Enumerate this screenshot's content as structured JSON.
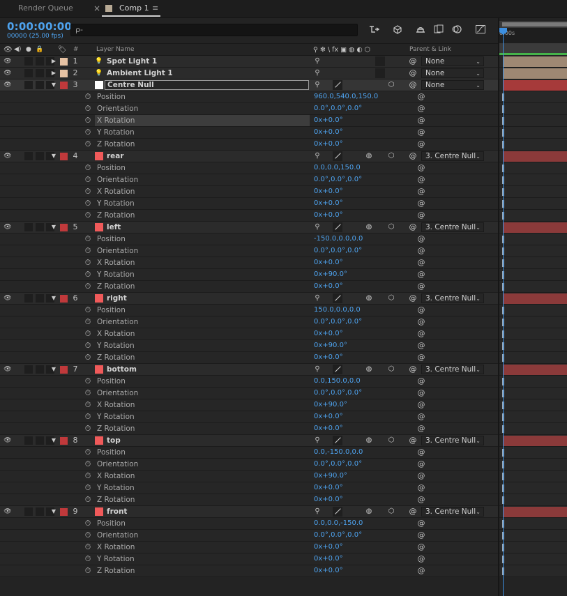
{
  "tabs": {
    "render_queue": "Render Queue",
    "close": "×",
    "comp": "Comp 1",
    "menu": "≡"
  },
  "header": {
    "timecode": "0:00:00:00",
    "fps": "00000 (25.00 fps)",
    "search_icon": "ρ-"
  },
  "columns": {
    "label_num": "#",
    "layer_name": "Layer Name",
    "switches": "⚲ ✻ \\ fx ▣ ◍ ◐ ⬡",
    "parent": "Parent & Link"
  },
  "timeline": {
    "ruler_label": "0:00s"
  },
  "colors": {
    "accent_blue": "#4ea3ef",
    "light_label": "#e6c2a3",
    "null_label": "#c0393b",
    "solid_swatch": "#f05a5a",
    "light_bar": "#9e8873",
    "solid_bar": "#8b3a3a",
    "null_bar": "#a63a3a"
  },
  "rows": [
    {
      "kind": "layer",
      "num": "1",
      "name": "Spot Light 1",
      "type": "light",
      "parent": "None",
      "twirl": "▶"
    },
    {
      "kind": "layer",
      "num": "2",
      "name": "Ambient Light 1",
      "type": "light",
      "parent": "None",
      "twirl": "▶"
    },
    {
      "kind": "layer",
      "num": "3",
      "name": "Centre Null",
      "type": "null",
      "parent": "None",
      "twirl": "▼",
      "selected": true
    },
    {
      "kind": "prop",
      "name": "Position",
      "value": "960.0,540.0,150.0"
    },
    {
      "kind": "prop",
      "name": "Orientation",
      "value": "0.0°,0.0°,0.0°"
    },
    {
      "kind": "prop",
      "name": "X Rotation",
      "value": "0x+0.0°",
      "highlight": true
    },
    {
      "kind": "prop",
      "name": "Y Rotation",
      "value": "0x+0.0°"
    },
    {
      "kind": "prop",
      "name": "Z Rotation",
      "value": "0x+0.0°"
    },
    {
      "kind": "layer",
      "num": "4",
      "name": "rear",
      "type": "solid",
      "parent": "3. Centre Null",
      "twirl": "▼"
    },
    {
      "kind": "prop",
      "name": "Position",
      "value": "0.0,0.0,150.0"
    },
    {
      "kind": "prop",
      "name": "Orientation",
      "value": "0.0°,0.0°,0.0°"
    },
    {
      "kind": "prop",
      "name": "X Rotation",
      "value": "0x+0.0°"
    },
    {
      "kind": "prop",
      "name": "Y Rotation",
      "value": "0x+0.0°"
    },
    {
      "kind": "prop",
      "name": "Z Rotation",
      "value": "0x+0.0°"
    },
    {
      "kind": "layer",
      "num": "5",
      "name": "left",
      "type": "solid",
      "parent": "3. Centre Null",
      "twirl": "▼"
    },
    {
      "kind": "prop",
      "name": "Position",
      "value": "-150.0,0.0,0.0"
    },
    {
      "kind": "prop",
      "name": "Orientation",
      "value": "0.0°,0.0°,0.0°"
    },
    {
      "kind": "prop",
      "name": "X Rotation",
      "value": "0x+0.0°"
    },
    {
      "kind": "prop",
      "name": "Y Rotation",
      "value": "0x+90.0°"
    },
    {
      "kind": "prop",
      "name": "Z Rotation",
      "value": "0x+0.0°"
    },
    {
      "kind": "layer",
      "num": "6",
      "name": "right",
      "type": "solid",
      "parent": "3. Centre Null",
      "twirl": "▼"
    },
    {
      "kind": "prop",
      "name": "Position",
      "value": "150.0,0.0,0.0"
    },
    {
      "kind": "prop",
      "name": "Orientation",
      "value": "0.0°,0.0°,0.0°"
    },
    {
      "kind": "prop",
      "name": "X Rotation",
      "value": "0x+0.0°"
    },
    {
      "kind": "prop",
      "name": "Y Rotation",
      "value": "0x+90.0°"
    },
    {
      "kind": "prop",
      "name": "Z Rotation",
      "value": "0x+0.0°"
    },
    {
      "kind": "layer",
      "num": "7",
      "name": "bottom",
      "type": "solid",
      "parent": "3. Centre Null",
      "twirl": "▼"
    },
    {
      "kind": "prop",
      "name": "Position",
      "value": "0.0,150.0,0.0"
    },
    {
      "kind": "prop",
      "name": "Orientation",
      "value": "0.0°,0.0°,0.0°"
    },
    {
      "kind": "prop",
      "name": "X Rotation",
      "value": "0x+90.0°"
    },
    {
      "kind": "prop",
      "name": "Y Rotation",
      "value": "0x+0.0°"
    },
    {
      "kind": "prop",
      "name": "Z Rotation",
      "value": "0x+0.0°"
    },
    {
      "kind": "layer",
      "num": "8",
      "name": "top",
      "type": "solid",
      "parent": "3. Centre Null",
      "twirl": "▼"
    },
    {
      "kind": "prop",
      "name": "Position",
      "value": "0.0,-150.0,0.0"
    },
    {
      "kind": "prop",
      "name": "Orientation",
      "value": "0.0°,0.0°,0.0°"
    },
    {
      "kind": "prop",
      "name": "X Rotation",
      "value": "0x+90.0°"
    },
    {
      "kind": "prop",
      "name": "Y Rotation",
      "value": "0x+0.0°"
    },
    {
      "kind": "prop",
      "name": "Z Rotation",
      "value": "0x+0.0°"
    },
    {
      "kind": "layer",
      "num": "9",
      "name": "front",
      "type": "solid",
      "parent": "3. Centre Null",
      "twirl": "▼"
    },
    {
      "kind": "prop",
      "name": "Position",
      "value": "0.0,0.0,-150.0"
    },
    {
      "kind": "prop",
      "name": "Orientation",
      "value": "0.0°,0.0°,0.0°"
    },
    {
      "kind": "prop",
      "name": "X Rotation",
      "value": "0x+0.0°"
    },
    {
      "kind": "prop",
      "name": "Y Rotation",
      "value": "0x+0.0°"
    },
    {
      "kind": "prop",
      "name": "Z Rotation",
      "value": "0x+0.0°"
    }
  ]
}
